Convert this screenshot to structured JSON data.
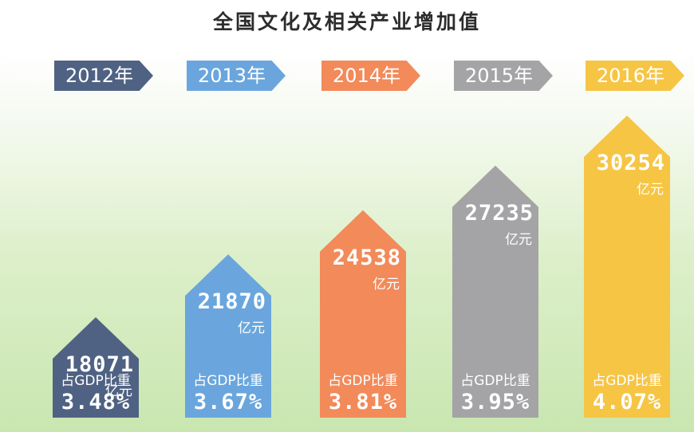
{
  "chart_data": {
    "type": "bar",
    "title": "全国文化及相关产业增加值",
    "categories": [
      "2012年",
      "2013年",
      "2014年",
      "2015年",
      "2016年"
    ],
    "series": [
      {
        "values": [
          18071,
          21870,
          24538,
          27235,
          30254
        ],
        "unit": "亿元"
      },
      {
        "values": [
          3.48,
          3.67,
          3.81,
          3.95,
          4.07
        ],
        "label": "占GDP比重",
        "unit": "%"
      }
    ],
    "value_labels": [
      "18071",
      "21870",
      "24538",
      "27235",
      "30254"
    ],
    "unit_label": "亿元",
    "share_label": "占GDP比重",
    "share_labels": [
      "3.48%",
      "3.67%",
      "3.81%",
      "3.95%",
      "4.07%"
    ],
    "colors": [
      "#4f6283",
      "#6aa6dd",
      "#f28a5a",
      "#a4a4a6",
      "#f6c544"
    ]
  }
}
